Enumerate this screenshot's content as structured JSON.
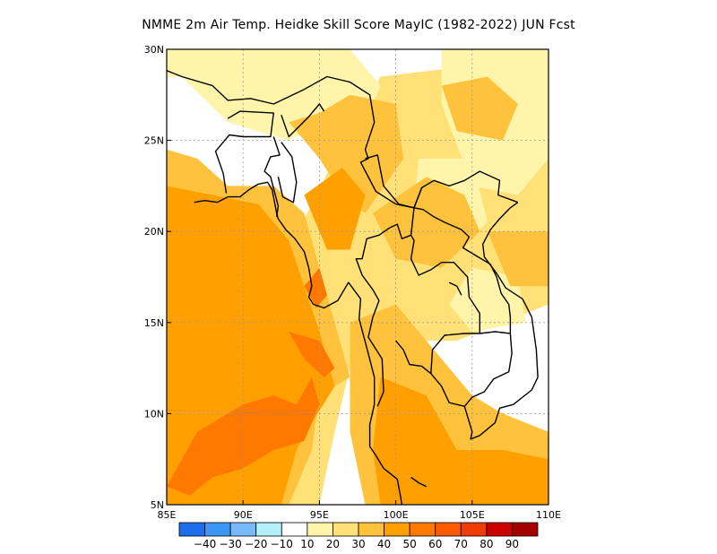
{
  "title": "NMME 2m Air Temp. Heidke Skill Score MayIC (1982-2022) JUN Fcst",
  "map": {
    "lon_range": [
      85,
      110
    ],
    "lat_range": [
      5,
      30
    ],
    "lon_ticks": [
      {
        "value": 85,
        "label": "85E"
      },
      {
        "value": 90,
        "label": "90E"
      },
      {
        "value": 95,
        "label": "95E"
      },
      {
        "value": 100,
        "label": "100E"
      },
      {
        "value": 105,
        "label": "105E"
      },
      {
        "value": 110,
        "label": "110E"
      }
    ],
    "lat_ticks": [
      {
        "value": 5,
        "label": "5N"
      },
      {
        "value": 10,
        "label": "10N"
      },
      {
        "value": 15,
        "label": "15N"
      },
      {
        "value": 20,
        "label": "20N"
      },
      {
        "value": 25,
        "label": "25N"
      },
      {
        "value": 30,
        "label": "30N"
      }
    ],
    "gridlines": "dashed"
  },
  "colorbar": {
    "colors": [
      "#1e6eeb",
      "#3c96f5",
      "#78b9fa",
      "#b4f0fa",
      "#ffffff",
      "#fff5aa",
      "#ffe178",
      "#ffc23c",
      "#ffa000",
      "#ff7800",
      "#ff5a00",
      "#f03c00",
      "#cd0000",
      "#a50000"
    ],
    "labels": [
      "-40",
      "-30",
      "-20",
      "-10",
      "10",
      "20",
      "30",
      "40",
      "50",
      "60",
      "70",
      "80",
      "90"
    ]
  },
  "field": {
    "level_colors": {
      "0": "#ffffff",
      "10": "#fff5aa",
      "20": "#ffe178",
      "30": "#ffc23c",
      "40": "#ffa000",
      "50": "#ff7800",
      "60": "#ff5a00"
    },
    "regions": [
      {
        "level": 20,
        "polygon": [
          [
            85,
            17
          ],
          [
            90,
            17
          ],
          [
            93,
            19
          ],
          [
            96,
            24
          ],
          [
            99,
            28.5
          ],
          [
            104,
            29
          ],
          [
            110,
            28
          ],
          [
            110,
            16
          ],
          [
            104,
            14
          ],
          [
            100,
            14
          ],
          [
            97,
            12.5
          ],
          [
            96,
            9
          ],
          [
            95,
            5
          ],
          [
            85,
            5
          ]
        ]
      },
      {
        "level": 10,
        "polygon": [
          [
            88,
            30
          ],
          [
            97,
            30
          ],
          [
            99,
            28
          ],
          [
            98,
            26
          ],
          [
            95,
            26
          ],
          [
            93,
            25
          ],
          [
            89,
            26
          ],
          [
            86,
            28.5
          ],
          [
            85,
            28.5
          ],
          [
            85,
            30
          ]
        ]
      },
      {
        "level": 10,
        "polygon": [
          [
            103,
            30
          ],
          [
            110,
            30
          ],
          [
            110,
            24
          ],
          [
            108,
            22
          ],
          [
            105,
            22.5
          ],
          [
            103,
            27
          ]
        ]
      },
      {
        "level": 10,
        "polygon": [
          [
            85,
            19
          ],
          [
            86,
            20.5
          ],
          [
            89,
            21
          ],
          [
            90.5,
            18
          ],
          [
            93,
            17
          ],
          [
            93,
            15
          ],
          [
            90,
            14
          ],
          [
            86,
            15.5
          ]
        ]
      },
      {
        "level": 10,
        "polygon": [
          [
            101.5,
            24
          ],
          [
            105,
            24
          ],
          [
            106,
            20.5
          ],
          [
            104,
            19
          ],
          [
            101,
            20
          ]
        ]
      },
      {
        "level": 10,
        "polygon": [
          [
            105,
            18
          ],
          [
            108,
            17.5
          ],
          [
            108.5,
            15
          ],
          [
            105,
            14.5
          ],
          [
            103.5,
            16
          ]
        ]
      },
      {
        "level": 30,
        "polygon": [
          [
            85,
            24.5
          ],
          [
            87,
            24
          ],
          [
            89,
            22.5
          ],
          [
            92,
            22.5
          ],
          [
            94,
            21
          ],
          [
            95,
            18
          ],
          [
            96,
            15
          ],
          [
            97,
            12
          ],
          [
            95,
            11
          ],
          [
            94.5,
            8
          ],
          [
            93,
            5
          ],
          [
            85,
            5
          ]
        ]
      },
      {
        "level": 30,
        "polygon": [
          [
            93,
            26
          ],
          [
            95,
            26.5
          ],
          [
            97,
            27.5
          ],
          [
            100,
            27
          ],
          [
            100.5,
            24
          ],
          [
            98,
            21
          ],
          [
            96.5,
            22
          ],
          [
            95,
            24
          ]
        ]
      },
      {
        "level": 30,
        "polygon": [
          [
            98.5,
            21
          ],
          [
            102,
            23
          ],
          [
            104.5,
            22
          ],
          [
            105.5,
            20
          ],
          [
            103,
            18
          ],
          [
            100,
            18.5
          ]
        ]
      },
      {
        "level": 30,
        "polygon": [
          [
            97,
            15
          ],
          [
            100,
            16
          ],
          [
            103,
            13
          ],
          [
            105,
            11
          ],
          [
            107,
            10
          ],
          [
            110,
            9
          ],
          [
            110,
            5
          ],
          [
            98,
            5
          ],
          [
            97,
            9
          ]
        ]
      },
      {
        "level": 30,
        "polygon": [
          [
            103,
            28
          ],
          [
            106,
            28.5
          ],
          [
            108,
            27
          ],
          [
            107,
            25
          ],
          [
            104,
            25.5
          ]
        ]
      },
      {
        "level": 30,
        "polygon": [
          [
            106,
            20
          ],
          [
            110,
            20
          ],
          [
            110,
            17
          ],
          [
            107.5,
            17
          ]
        ]
      },
      {
        "level": 40,
        "polygon": [
          [
            85,
            22.5
          ],
          [
            88,
            22
          ],
          [
            91,
            21.5
          ],
          [
            93,
            19.5
          ],
          [
            94,
            17
          ],
          [
            95,
            14.5
          ],
          [
            96,
            11.5
          ],
          [
            94.5,
            9.5
          ],
          [
            93.5,
            8
          ],
          [
            92.5,
            5
          ],
          [
            85,
            5
          ]
        ]
      },
      {
        "level": 40,
        "polygon": [
          [
            94,
            22
          ],
          [
            96.5,
            23.5
          ],
          [
            98,
            22
          ],
          [
            97,
            19
          ],
          [
            95.5,
            19
          ]
        ]
      },
      {
        "level": 40,
        "polygon": [
          [
            99,
            12
          ],
          [
            102,
            11
          ],
          [
            104,
            8
          ],
          [
            107,
            8
          ],
          [
            110,
            7.5
          ],
          [
            110,
            5
          ],
          [
            99,
            5
          ],
          [
            98.5,
            8
          ]
        ]
      },
      {
        "level": 50,
        "polygon": [
          [
            85,
            6
          ],
          [
            87,
            9
          ],
          [
            90,
            10.5
          ],
          [
            92,
            11
          ],
          [
            93.5,
            10.5
          ],
          [
            94.5,
            12
          ],
          [
            95,
            10.5
          ],
          [
            94,
            8.5
          ],
          [
            92,
            8
          ],
          [
            90,
            7
          ],
          [
            88,
            6.5
          ],
          [
            86.5,
            5.5
          ]
        ]
      },
      {
        "level": 50,
        "polygon": [
          [
            94,
            17
          ],
          [
            95,
            18
          ],
          [
            95.5,
            16.5
          ],
          [
            94.8,
            15.8
          ]
        ]
      },
      {
        "level": 50,
        "polygon": [
          [
            93,
            14.5
          ],
          [
            95,
            14
          ],
          [
            96,
            12.5
          ],
          [
            95.3,
            12
          ],
          [
            94,
            13
          ]
        ]
      }
    ]
  },
  "map_lines": [
    [
      [
        84.5,
        29
      ],
      [
        86,
        28.5
      ],
      [
        88,
        28
      ],
      [
        89,
        27.2
      ],
      [
        90.5,
        27.3
      ],
      [
        92,
        27
      ],
      [
        94,
        27.8
      ],
      [
        95.5,
        28.5
      ],
      [
        97,
        28.2
      ],
      [
        98.3,
        27.5
      ],
      [
        98.6,
        26
      ],
      [
        98,
        24.5
      ],
      [
        98.2,
        24
      ],
      [
        97.7,
        23.8
      ],
      [
        98.7,
        22.2
      ],
      [
        100,
        21.5
      ],
      [
        101.2,
        21.3
      ],
      [
        101.7,
        22.4
      ],
      [
        102.5,
        22.8
      ],
      [
        103.5,
        22.5
      ],
      [
        104.5,
        22.8
      ],
      [
        105.5,
        23.3
      ],
      [
        106.8,
        22.8
      ],
      [
        106.7,
        22
      ],
      [
        108,
        21.6
      ]
    ],
    [
      [
        89,
        26.2
      ],
      [
        89.8,
        26.6
      ],
      [
        92,
        26.5
      ],
      [
        91.8,
        25.2
      ],
      [
        90,
        25.2
      ],
      [
        89.1,
        25.3
      ],
      [
        88.2,
        24.4
      ],
      [
        88.7,
        23.2
      ],
      [
        88.9,
        22.1
      ]
    ],
    [
      [
        92,
        25.2
      ],
      [
        92.4,
        24.2
      ],
      [
        91.8,
        24.1
      ],
      [
        91.4,
        23.3
      ],
      [
        91.8,
        23
      ],
      [
        92.3,
        21.4
      ],
      [
        92.2,
        20.8
      ]
    ],
    [
      [
        92.5,
        26.4
      ],
      [
        93,
        25.2
      ],
      [
        94.3,
        26.3
      ],
      [
        95,
        27
      ],
      [
        95.3,
        26.6
      ]
    ],
    [
      [
        92.5,
        24.9
      ],
      [
        93.2,
        24.1
      ],
      [
        93.5,
        22.7
      ],
      [
        93.3,
        21.6
      ],
      [
        92.6,
        21.9
      ],
      [
        92.3,
        23
      ]
    ],
    [
      [
        86.8,
        21.6
      ],
      [
        87.5,
        21.7
      ],
      [
        88.3,
        21.6
      ],
      [
        89,
        21.9
      ],
      [
        89.8,
        21.9
      ],
      [
        90.4,
        22.3
      ],
      [
        91,
        22.6
      ],
      [
        91.6,
        22.7
      ],
      [
        91.9,
        22.3
      ],
      [
        92.2,
        21
      ],
      [
        92.3,
        20.7
      ],
      [
        92.8,
        20.1
      ],
      [
        93.4,
        19.6
      ],
      [
        94,
        18.9
      ],
      [
        94.3,
        18
      ],
      [
        94.5,
        17
      ],
      [
        94.3,
        16.4
      ],
      [
        94.6,
        16
      ],
      [
        95.3,
        15.8
      ],
      [
        96.2,
        16.2
      ],
      [
        96.9,
        17.2
      ],
      [
        97.7,
        16.3
      ],
      [
        97.6,
        15.2
      ],
      [
        98.2,
        13.3
      ],
      [
        98.6,
        12
      ],
      [
        98.6,
        10.5
      ],
      [
        98.3,
        9.4
      ],
      [
        98.3,
        8.2
      ],
      [
        98.7,
        7.7
      ],
      [
        99.2,
        7
      ],
      [
        100.1,
        6.4
      ],
      [
        100.3,
        5.5
      ],
      [
        100.4,
        5
      ]
    ],
    [
      [
        100,
        14
      ],
      [
        100.5,
        13.5
      ],
      [
        100.9,
        12.7
      ],
      [
        101.7,
        12.6
      ],
      [
        102.3,
        12.2
      ],
      [
        103,
        11.5
      ],
      [
        103.5,
        10.6
      ],
      [
        104.5,
        10.4
      ],
      [
        105,
        9
      ],
      [
        104.9,
        8.6
      ],
      [
        105.5,
        8.8
      ],
      [
        106.5,
        9.5
      ],
      [
        106.8,
        10.3
      ],
      [
        107.7,
        10.5
      ],
      [
        108.9,
        11.3
      ],
      [
        109.3,
        12
      ],
      [
        109.2,
        13.5
      ],
      [
        108.9,
        15.3
      ],
      [
        108.3,
        16.3
      ],
      [
        107.2,
        16.9
      ],
      [
        106.6,
        17.7
      ],
      [
        105.8,
        18.6
      ],
      [
        105.7,
        19.3
      ],
      [
        106.2,
        20.1
      ],
      [
        106.8,
        20.7
      ],
      [
        107.5,
        21.3
      ],
      [
        108,
        21.6
      ]
    ],
    [
      [
        98,
        24
      ],
      [
        98.8,
        24.2
      ],
      [
        99.2,
        22.5
      ],
      [
        100.2,
        21.5
      ],
      [
        101.2,
        21.3
      ],
      [
        101,
        19.8
      ],
      [
        100.4,
        19.6
      ],
      [
        100.1,
        20.4
      ],
      [
        99.6,
        20.2
      ],
      [
        98.9,
        19.8
      ],
      [
        98.1,
        19.6
      ],
      [
        97.8,
        18.5
      ],
      [
        97.4,
        18.5
      ],
      [
        97.8,
        17.6
      ],
      [
        98.5,
        16.8
      ],
      [
        98.9,
        16.2
      ],
      [
        98.5,
        15.3
      ],
      [
        98.2,
        14.2
      ],
      [
        99.1,
        13
      ],
      [
        99.2,
        11.2
      ],
      [
        98.8,
        10.4
      ]
    ],
    [
      [
        101.2,
        21.3
      ],
      [
        101.7,
        22.4
      ]
    ],
    [
      [
        101,
        19.8
      ],
      [
        101.2,
        19.5
      ],
      [
        101,
        18.5
      ],
      [
        101.5,
        17.6
      ],
      [
        102.3,
        17.9
      ],
      [
        103,
        18.3
      ],
      [
        103.8,
        18.3
      ],
      [
        104.7,
        17.5
      ],
      [
        104.8,
        16.4
      ],
      [
        105.5,
        15.5
      ],
      [
        105.5,
        14.4
      ]
    ],
    [
      [
        105.5,
        14.4
      ],
      [
        104.5,
        14.4
      ],
      [
        103.2,
        14.3
      ],
      [
        102.4,
        13.5
      ],
      [
        102.3,
        12.2
      ]
    ],
    [
      [
        105.5,
        14.4
      ],
      [
        106.5,
        14.5
      ],
      [
        107.5,
        14.4
      ],
      [
        107.6,
        13.3
      ],
      [
        107.4,
        12.3
      ],
      [
        106.4,
        11.9
      ],
      [
        105.8,
        11.2
      ],
      [
        105,
        10.9
      ],
      [
        104.5,
        10.4
      ]
    ],
    [
      [
        101.2,
        21.3
      ],
      [
        101.8,
        21.2
      ],
      [
        102.5,
        20.8
      ],
      [
        103.2,
        20.5
      ],
      [
        104.3,
        20.1
      ],
      [
        104.8,
        19.7
      ],
      [
        104.4,
        19.1
      ],
      [
        105.2,
        18.7
      ],
      [
        106.2,
        18.2
      ],
      [
        106.6,
        17.5
      ],
      [
        106.9,
        16.6
      ],
      [
        107.4,
        16
      ],
      [
        107.5,
        15.3
      ],
      [
        107.5,
        14.4
      ]
    ],
    [
      [
        101,
        6.5
      ],
      [
        101.5,
        6.2
      ],
      [
        102,
        6
      ]
    ],
    [
      [
        104.3,
        16.5
      ],
      [
        104,
        17
      ],
      [
        103.5,
        17.2
      ]
    ]
  ]
}
